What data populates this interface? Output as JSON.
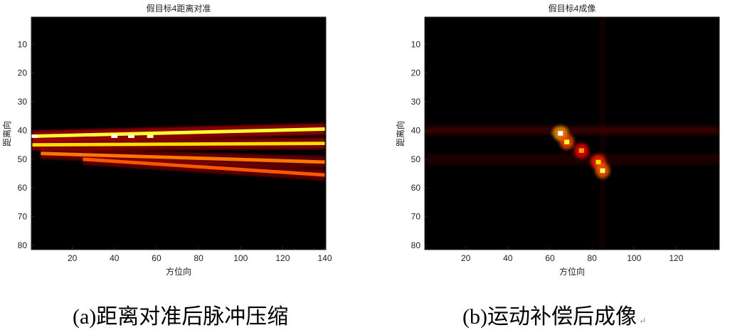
{
  "chart_data": [
    {
      "type": "heatmap",
      "title": "假目标4距离对准",
      "xlabel": "方位向",
      "ylabel": "距离向",
      "xlim": [
        0.5,
        140.5
      ],
      "ylim": [
        0.5,
        81.5
      ],
      "y_direction": "reversed",
      "x_ticks": [
        20,
        40,
        60,
        80,
        100,
        120,
        140
      ],
      "y_ticks": [
        10,
        20,
        30,
        40,
        50,
        60,
        70,
        80
      ],
      "colormap": "hot",
      "grid": false,
      "bands": [
        {
          "x": [
            1,
            140
          ],
          "y": [
            42,
            39.5
          ],
          "level": 0.8
        },
        {
          "x": [
            1,
            140
          ],
          "y": [
            45,
            44.5
          ],
          "level": 0.7
        },
        {
          "x": [
            5,
            140
          ],
          "y": [
            48,
            51
          ],
          "level": 0.55
        },
        {
          "x": [
            25,
            140
          ],
          "y": [
            50,
            55.5
          ],
          "level": 0.5
        }
      ],
      "hotspots": [
        {
          "x": 2,
          "y": 42,
          "level": 0.95
        },
        {
          "x": 40,
          "y": 42,
          "level": 1.0
        },
        {
          "x": 48,
          "y": 42,
          "level": 0.95
        },
        {
          "x": 57,
          "y": 42,
          "level": 0.9
        }
      ]
    },
    {
      "type": "heatmap",
      "title": "假目标4成像",
      "xlabel": "方位向",
      "ylabel": "距离向",
      "xlim": [
        0.5,
        140.5
      ],
      "ylim": [
        0.5,
        81.5
      ],
      "y_direction": "reversed",
      "x_ticks": [
        20,
        40,
        60,
        80,
        100,
        120
      ],
      "y_ticks": [
        10,
        20,
        30,
        40,
        50,
        60,
        70,
        80
      ],
      "colormap": "hot",
      "grid": false,
      "features": [
        {
          "x": 65,
          "y": 41,
          "level": 1.0
        },
        {
          "x": 68,
          "y": 44,
          "level": 0.8
        },
        {
          "x": 75,
          "y": 47,
          "level": 0.6
        },
        {
          "x": 83,
          "y": 51,
          "level": 0.7
        },
        {
          "x": 85,
          "y": 54,
          "level": 0.85
        }
      ]
    }
  ],
  "captions": {
    "a": "(a)距离对准后脉冲压缩",
    "b": "(b)运动补偿后成像",
    "return_mark": "↵"
  }
}
